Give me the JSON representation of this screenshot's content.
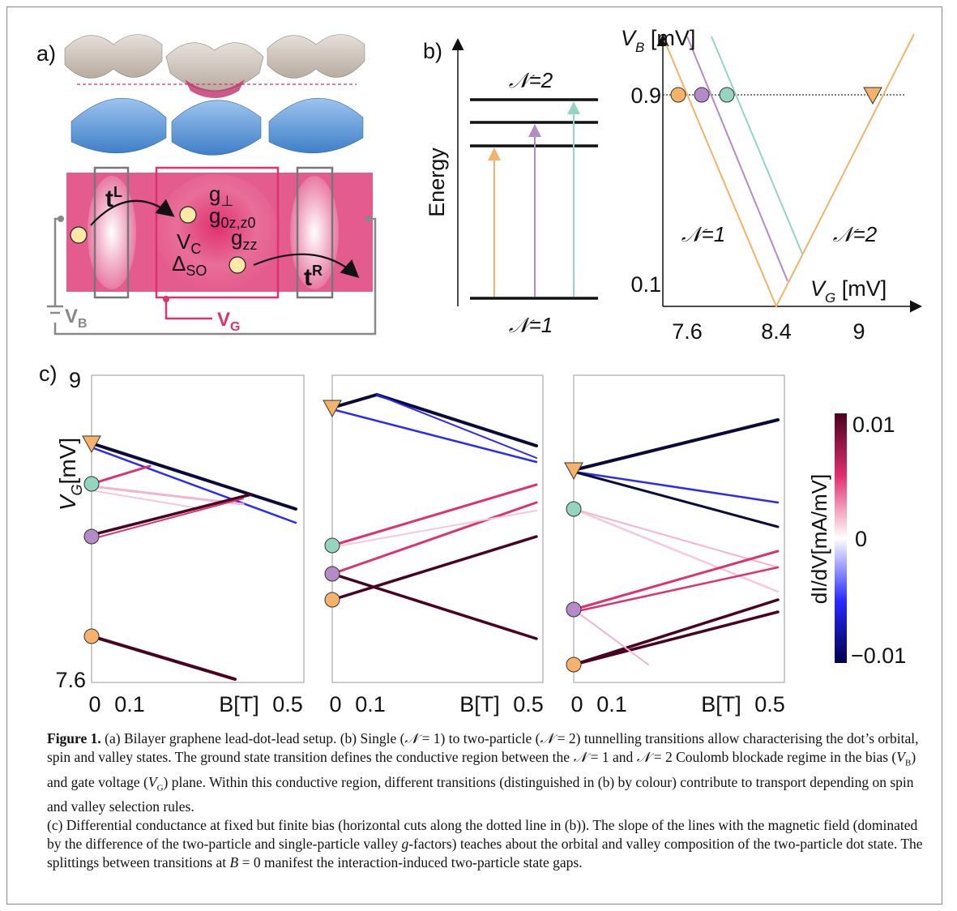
{
  "panel_a": {
    "label": "a)",
    "t_left": {
      "base": "t",
      "sup": "L"
    },
    "g_perp": {
      "base": "g",
      "sub": "⊥"
    },
    "g_0z": {
      "base": "g",
      "sub": "0z,z0"
    },
    "v_c": {
      "base": "V",
      "sub": "C"
    },
    "g_zz": {
      "base": "g",
      "sub": "zz"
    },
    "delta_so": {
      "base": "Δ",
      "sub": "SO"
    },
    "t_right": {
      "base": "t",
      "sup": "R"
    },
    "v_b": {
      "base": "V",
      "sub": "B"
    },
    "v_g": {
      "base": "V",
      "sub": "G"
    }
  },
  "panel_b": {
    "label": "b)",
    "levels_upper": "𝒩=2",
    "energy_axis": "Energy",
    "levels_lower": "𝒩=1",
    "y_axis": {
      "base": "V",
      "sub": "B",
      "unit": " [mV]"
    },
    "yticks": [
      "0.9",
      "0.1"
    ],
    "region_left": "𝒩=1",
    "region_right": "𝒩=2",
    "x_axis": {
      "base": "V",
      "sub": "G",
      "unit": " [mV]"
    },
    "xticks": [
      "7.6",
      "8.4",
      "9"
    ]
  },
  "panel_c": {
    "label": "c)",
    "yticks": [
      "9",
      "7.6"
    ],
    "y_axis": {
      "base": "V",
      "sub": "G",
      "unit": "[mV]"
    },
    "subplots": [
      {
        "xticks": [
          "0",
          "0.1",
          "0.5"
        ],
        "x_axis": "B[T]"
      },
      {
        "xticks": [
          "0",
          "0.1",
          "0.5"
        ],
        "x_axis": "B[T]"
      },
      {
        "xticks": [
          "0",
          "0.1",
          "0.5"
        ],
        "x_axis": "B[T]"
      }
    ],
    "colorbar": {
      "ticks": [
        "0.01",
        "0",
        "−0.01"
      ],
      "label": "dI/dV[mA/mV]"
    }
  },
  "caption": {
    "label": "Figure 1.",
    "part_1": [
      {
        "text": " (a) Bilayer graphene lead-dot-lead setup. (b) Single ("
      },
      {
        "text": "𝒩",
        "style": "italic"
      },
      {
        "text": " = 1) to two-particle ("
      },
      {
        "text": "𝒩",
        "style": "italic"
      },
      {
        "text": " = 2) tunnelling transitions allow characterising the dot’s orbital, spin and valley states. The ground state transition defines the conductive region between the "
      },
      {
        "text": "𝒩",
        "style": "italic"
      },
      {
        "text": " = 1 and "
      },
      {
        "text": "𝒩",
        "style": "italic"
      },
      {
        "text": " = 2 Coulomb blockade regime in the bias ("
      },
      {
        "text": "V",
        "style": "italic"
      },
      {
        "text": "B",
        "style": "sub"
      },
      {
        "text": ") and gate voltage ("
      },
      {
        "text": "V",
        "style": "italic"
      },
      {
        "text": "G",
        "style": "sub"
      },
      {
        "text": ") plane. Within this conductive region, different transitions (distinguished in (b) by colour) contribute to transport depending on spin and valley selection rules."
      }
    ],
    "part_2": [
      {
        "text": "(c) Differential conductance at fixed but finite bias (horizontal cuts along the dotted line in (b)). The slope of the lines with the magnetic field (dominated by the difference of the two-particle and single-particle valley "
      },
      {
        "text": "g",
        "style": "italic"
      },
      {
        "text": "-factors) teaches about the orbital and valley composition of the two-particle dot state. The splittings between transitions at "
      },
      {
        "text": "B",
        "style": "italic"
      },
      {
        "text": " = 0 manifest the interaction-induced two-particle state gaps."
      }
    ]
  }
}
